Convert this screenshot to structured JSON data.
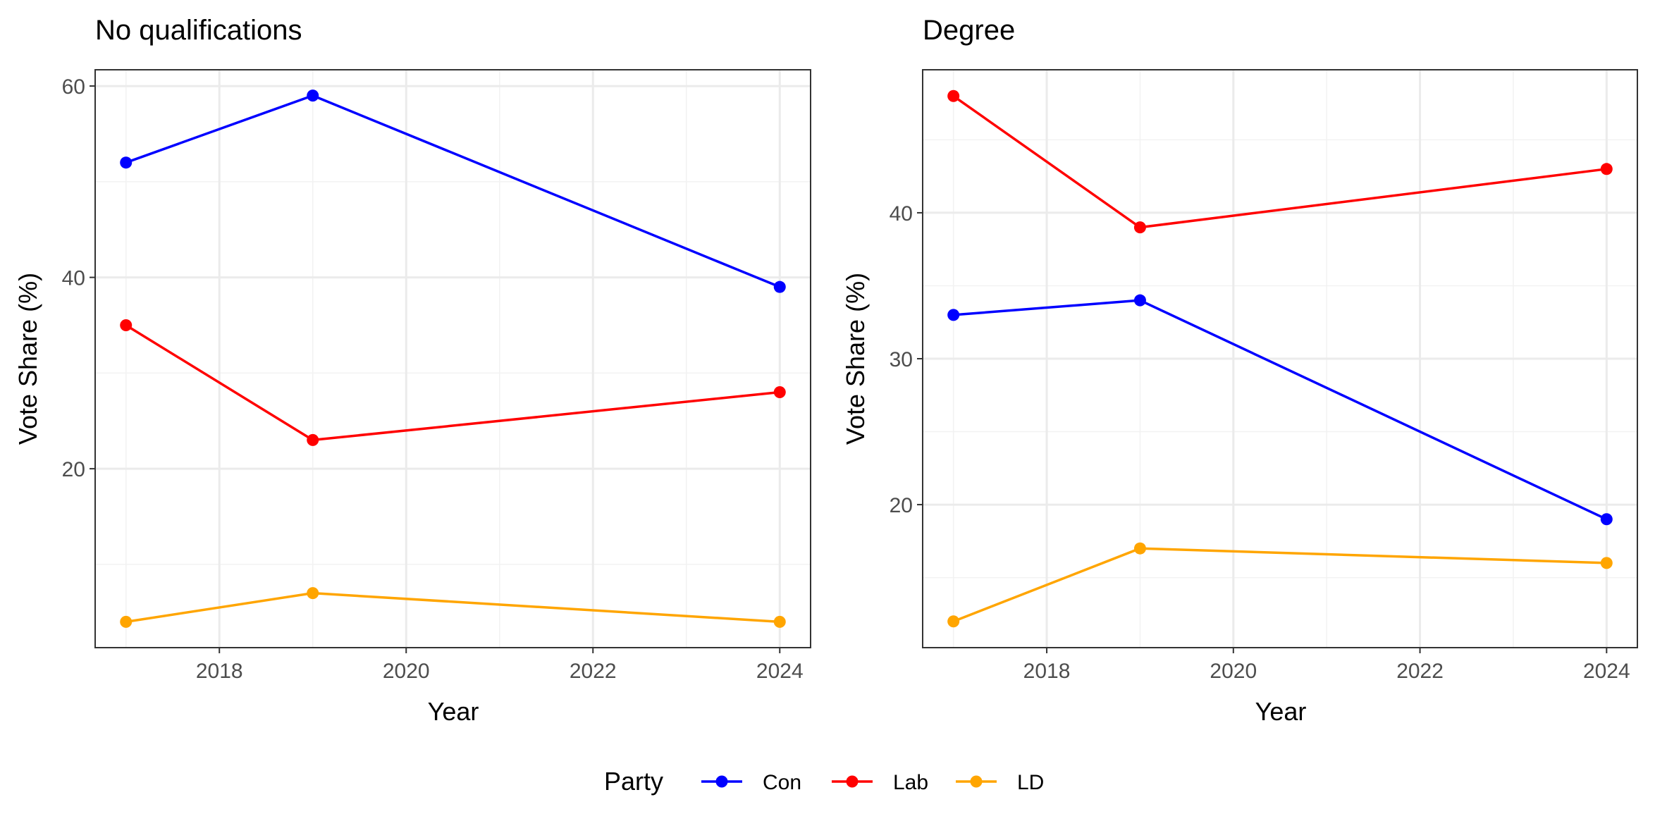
{
  "chart_data": [
    {
      "type": "line",
      "title": "No qualifications",
      "xlabel": "Year",
      "ylabel": "Vote Share (%)",
      "x": [
        2017,
        2019,
        2024
      ],
      "xlim": [
        2016.67,
        2024.33
      ],
      "ylim": [
        1.3,
        61.7
      ],
      "xticks": [
        2018,
        2020,
        2022,
        2024
      ],
      "yticks": [
        20,
        40,
        60
      ],
      "grid": true,
      "series": [
        {
          "name": "Con",
          "color": "#0000FF",
          "values": [
            52,
            59,
            39
          ]
        },
        {
          "name": "Lab",
          "color": "#FF0000",
          "values": [
            35,
            23,
            28
          ]
        },
        {
          "name": "LD",
          "color": "#FFA500",
          "values": [
            4,
            7,
            4
          ]
        }
      ]
    },
    {
      "type": "line",
      "title": "Degree",
      "xlabel": "Year",
      "ylabel": "Vote Share (%)",
      "x": [
        2017,
        2019,
        2024
      ],
      "xlim": [
        2016.67,
        2024.33
      ],
      "ylim": [
        10.2,
        49.8
      ],
      "xticks": [
        2018,
        2020,
        2022,
        2024
      ],
      "yticks": [
        20,
        30,
        40
      ],
      "grid": true,
      "series": [
        {
          "name": "Con",
          "color": "#0000FF",
          "values": [
            33,
            34,
            19
          ]
        },
        {
          "name": "Lab",
          "color": "#FF0000",
          "values": [
            48,
            39,
            43
          ]
        },
        {
          "name": "LD",
          "color": "#FFA500",
          "values": [
            12,
            17,
            16
          ]
        }
      ]
    }
  ],
  "legend": {
    "title": "Party",
    "position": "bottom",
    "items": [
      {
        "label": "Con",
        "color": "#0000FF"
      },
      {
        "label": "Lab",
        "color": "#FF0000"
      },
      {
        "label": "LD",
        "color": "#FFA500"
      }
    ]
  }
}
